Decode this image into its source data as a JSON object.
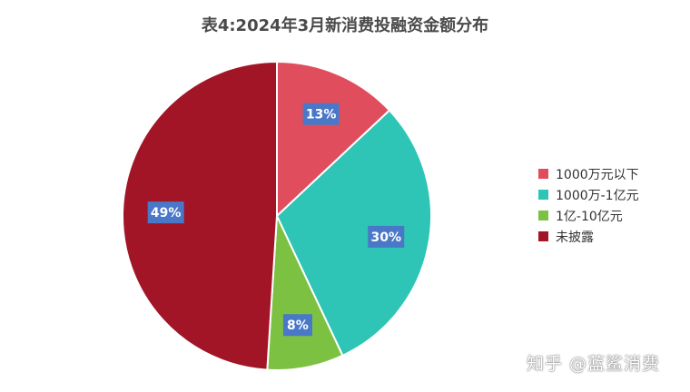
{
  "title": "表4:2024年3月新消费投融资金额分布",
  "watermark": "知乎 @蓝鲨消费",
  "chart_data": {
    "type": "pie",
    "title": "表4:2024年3月新消费投融资金额分布",
    "legend_position": "right",
    "slices": [
      {
        "label": "1000万元以下",
        "value": 13,
        "display": "13%",
        "color": "#e04e5e"
      },
      {
        "label": "1000万-1亿元",
        "value": 30,
        "display": "30%",
        "color": "#2ec4b6"
      },
      {
        "label": "1亿-10亿元",
        "value": 8,
        "display": "8%",
        "color": "#7cc142"
      },
      {
        "label": "未披露",
        "value": 49,
        "display": "49%",
        "color": "#a21527"
      }
    ],
    "label_box_color": "#4a78c8"
  }
}
